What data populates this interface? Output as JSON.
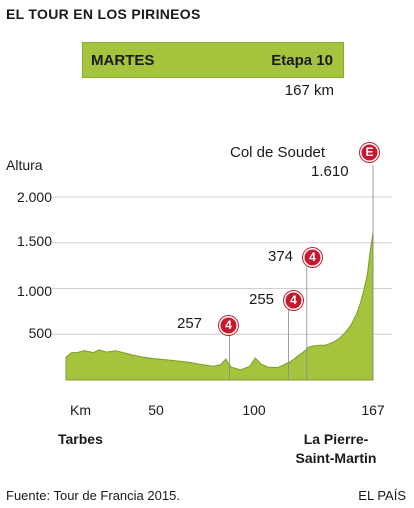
{
  "title": "EL TOUR EN LOS PIRINEOS",
  "stage": {
    "day": "MARTES",
    "name": "Etapa 10",
    "distance": "167 km"
  },
  "chart_data": {
    "type": "area",
    "ylabel": "Altura",
    "xlabel": "Km",
    "ylim": [
      0,
      2000
    ],
    "xlim": [
      0,
      167
    ],
    "yticks": [
      {
        "value": 500,
        "label": "500"
      },
      {
        "value": 1000,
        "label": "1.000"
      },
      {
        "value": 1500,
        "label": "1.500"
      },
      {
        "value": 2000,
        "label": "2.000"
      }
    ],
    "xticks": [
      {
        "value": 50,
        "label": "50"
      },
      {
        "value": 100,
        "label": "100"
      },
      {
        "value": 167,
        "label": "167"
      }
    ],
    "profile": [
      [
        0,
        250
      ],
      [
        3,
        300
      ],
      [
        6,
        300
      ],
      [
        10,
        320
      ],
      [
        15,
        300
      ],
      [
        18,
        330
      ],
      [
        22,
        305
      ],
      [
        27,
        320
      ],
      [
        32,
        295
      ],
      [
        37,
        270
      ],
      [
        42,
        250
      ],
      [
        47,
        235
      ],
      [
        52,
        225
      ],
      [
        57,
        215
      ],
      [
        62,
        205
      ],
      [
        67,
        195
      ],
      [
        72,
        175
      ],
      [
        77,
        160
      ],
      [
        80,
        150
      ],
      [
        84,
        165
      ],
      [
        87,
        230
      ],
      [
        88,
        190
      ],
      [
        90,
        140
      ],
      [
        95,
        110
      ],
      [
        100,
        150
      ],
      [
        103,
        240
      ],
      [
        106,
        175
      ],
      [
        110,
        140
      ],
      [
        115,
        135
      ],
      [
        118,
        160
      ],
      [
        120,
        180
      ],
      [
        122,
        200
      ],
      [
        124,
        230
      ],
      [
        126,
        260
      ],
      [
        128,
        290
      ],
      [
        130,
        320
      ],
      [
        132,
        360
      ],
      [
        135,
        374
      ],
      [
        138,
        380
      ],
      [
        141,
        380
      ],
      [
        143,
        395
      ],
      [
        146,
        420
      ],
      [
        149,
        460
      ],
      [
        152,
        520
      ],
      [
        155,
        600
      ],
      [
        158,
        720
      ],
      [
        160,
        830
      ],
      [
        162,
        980
      ],
      [
        164,
        1160
      ],
      [
        165,
        1330
      ],
      [
        166,
        1480
      ],
      [
        167,
        1610
      ]
    ],
    "climbs": [
      {
        "km": 89,
        "altitude": 257,
        "category": "4",
        "label": "257"
      },
      {
        "km": 121,
        "altitude": 255,
        "category": "4",
        "label": "255"
      },
      {
        "km": 131,
        "altitude": 374,
        "category": "4",
        "label": "374"
      },
      {
        "km": 167,
        "altitude": 1610,
        "category": "E",
        "label": "1.610",
        "name": "Col de Soudet"
      }
    ],
    "start": "Tarbes",
    "finish": "La Pierre-Saint-Martin",
    "colors": {
      "fill": "#a4c43e",
      "line": "#7e9c2a",
      "badge": "#c51a2e",
      "grid": "#cfcfcf"
    }
  },
  "source": "Fuente: Tour de Francia 2015.",
  "publisher": "EL PAÍS"
}
